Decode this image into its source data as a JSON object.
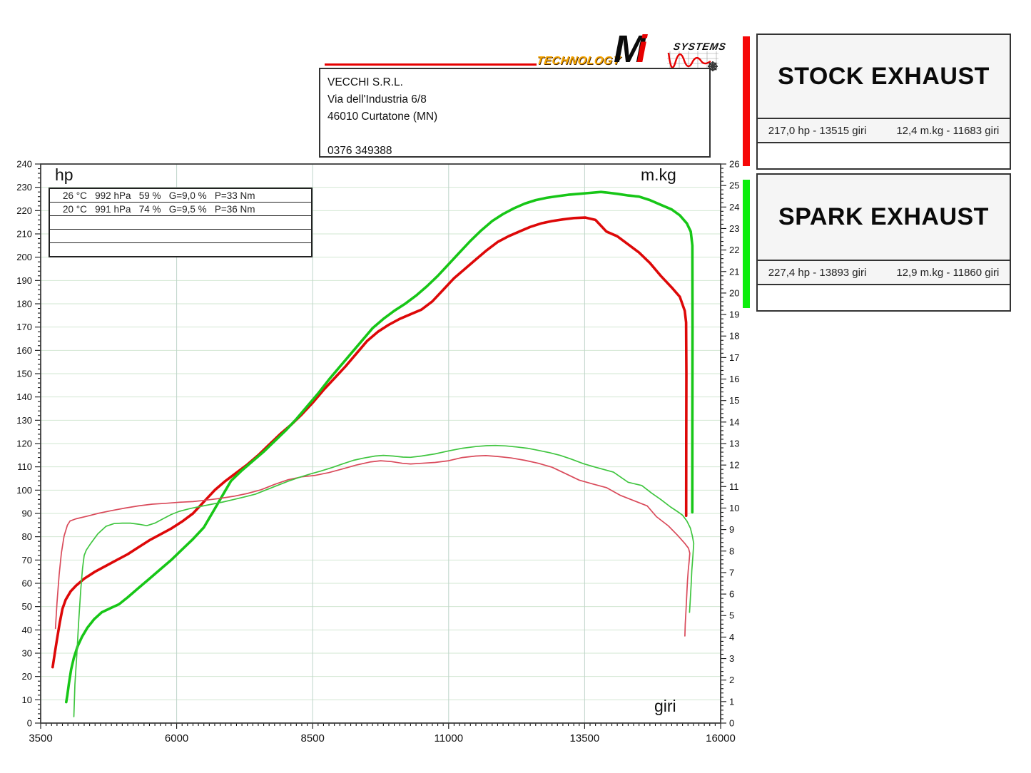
{
  "header": {
    "company": {
      "lines": [
        "VECCHI S.R.L.",
        "Via dell'Industria 6/8",
        "46010 Curtatone (MN)",
        "",
        "0376 349388"
      ]
    },
    "logo": {
      "technology": "TECHNOLOGY",
      "brand_m": "M",
      "brand_i": "i",
      "systems": "SYSTEMS"
    }
  },
  "legend": [
    {
      "title": "STOCK EXHAUST",
      "color": "#f60707",
      "hp_stat": "217,0 hp - 13515 giri",
      "torque_stat": "12,4 m.kg - 11683 giri"
    },
    {
      "title": "SPARK EXHAUST",
      "color": "#0cee0c",
      "hp_stat": "227,4 hp - 13893 giri",
      "torque_stat": "12,9 m.kg - 11860 giri"
    }
  ],
  "chart": {
    "y_left_unit": "hp",
    "y_right_unit": "m.kg",
    "x_unit": "giri",
    "conditions_rows": [
      [
        "26 °C",
        "992 hPa",
        "59 %",
        "G=9,0 %",
        "P=33 Nm"
      ],
      [
        "20 °C",
        "991 hPa",
        "74 %",
        "G=9,5 %",
        "P=36 Nm"
      ],
      [],
      [],
      []
    ]
  },
  "chart_data": {
    "type": "line",
    "xlabel": "giri",
    "ylabel_left": "hp",
    "ylabel_right": "m.kg",
    "x_range": [
      3500,
      16000
    ],
    "x_ticks": [
      3500,
      6000,
      8500,
      11000,
      13500,
      16000
    ],
    "x_minor_step": 100,
    "y_left_range": [
      0,
      240
    ],
    "y_left_tick_step": 10,
    "y_left_minor_step": 2,
    "y_right_range": [
      0,
      26
    ],
    "y_right_tick_step": 1,
    "y_right_minor_step": 0.2,
    "grid": true,
    "legend_position": "right-panels",
    "peaks": {
      "stock_hp": [
        13515,
        217.0
      ],
      "stock_torque": [
        11683,
        12.4
      ],
      "spark_hp": [
        13893,
        227.4
      ],
      "spark_torque": [
        11860,
        12.9
      ]
    },
    "series": [
      {
        "name": "stock-exhaust-hp",
        "axis": "left",
        "color": "#dd0808",
        "width": 3.6,
        "points": [
          [
            3720,
            24
          ],
          [
            3760,
            30
          ],
          [
            3800,
            36
          ],
          [
            3850,
            43
          ],
          [
            3900,
            49
          ],
          [
            3960,
            53
          ],
          [
            4050,
            56.5
          ],
          [
            4150,
            59
          ],
          [
            4300,
            62
          ],
          [
            4500,
            65
          ],
          [
            4700,
            67.5
          ],
          [
            4900,
            70
          ],
          [
            5100,
            72.5
          ],
          [
            5300,
            75.5
          ],
          [
            5500,
            78.5
          ],
          [
            5700,
            81
          ],
          [
            5900,
            83.5
          ],
          [
            6100,
            86.5
          ],
          [
            6300,
            90
          ],
          [
            6500,
            95
          ],
          [
            6700,
            100
          ],
          [
            6900,
            104
          ],
          [
            7100,
            107.5
          ],
          [
            7300,
            111
          ],
          [
            7500,
            115
          ],
          [
            7700,
            119.5
          ],
          [
            7900,
            124
          ],
          [
            8100,
            128
          ],
          [
            8300,
            132.5
          ],
          [
            8500,
            137.5
          ],
          [
            8700,
            143
          ],
          [
            8900,
            148
          ],
          [
            9100,
            153
          ],
          [
            9300,
            158.5
          ],
          [
            9500,
            164
          ],
          [
            9700,
            168
          ],
          [
            9900,
            171
          ],
          [
            10100,
            173.5
          ],
          [
            10300,
            175.5
          ],
          [
            10500,
            177.5
          ],
          [
            10700,
            181
          ],
          [
            10900,
            186
          ],
          [
            11100,
            191
          ],
          [
            11300,
            195
          ],
          [
            11500,
            199
          ],
          [
            11700,
            203
          ],
          [
            11900,
            206.5
          ],
          [
            12100,
            209
          ],
          [
            12300,
            211
          ],
          [
            12500,
            213
          ],
          [
            12700,
            214.5
          ],
          [
            12900,
            215.5
          ],
          [
            13100,
            216.2
          ],
          [
            13300,
            216.8
          ],
          [
            13515,
            217
          ],
          [
            13700,
            216
          ],
          [
            13900,
            211
          ],
          [
            14100,
            209
          ],
          [
            14300,
            205.5
          ],
          [
            14500,
            202
          ],
          [
            14700,
            197.5
          ],
          [
            14900,
            192
          ],
          [
            15100,
            187
          ],
          [
            15250,
            183
          ],
          [
            15340,
            177
          ],
          [
            15365,
            172
          ],
          [
            15370,
            150
          ],
          [
            15368,
            120
          ],
          [
            15366,
            89
          ]
        ]
      },
      {
        "name": "spark-exhaust-hp",
        "axis": "left",
        "color": "#17c617",
        "width": 3.6,
        "points": [
          [
            3970,
            9
          ],
          [
            3990,
            12
          ],
          [
            4020,
            17
          ],
          [
            4060,
            23
          ],
          [
            4110,
            28
          ],
          [
            4180,
            33
          ],
          [
            4260,
            37
          ],
          [
            4360,
            41
          ],
          [
            4480,
            44.5
          ],
          [
            4620,
            47.5
          ],
          [
            4800,
            49.5
          ],
          [
            4940,
            51
          ],
          [
            5100,
            54
          ],
          [
            5300,
            58
          ],
          [
            5500,
            62
          ],
          [
            5700,
            66
          ],
          [
            5900,
            70
          ],
          [
            6100,
            74.5
          ],
          [
            6300,
            79
          ],
          [
            6500,
            84
          ],
          [
            6700,
            92
          ],
          [
            6900,
            100
          ],
          [
            7000,
            104
          ],
          [
            7200,
            108.5
          ],
          [
            7400,
            112.5
          ],
          [
            7600,
            116.5
          ],
          [
            7800,
            121
          ],
          [
            8000,
            125.5
          ],
          [
            8200,
            130.5
          ],
          [
            8400,
            136
          ],
          [
            8600,
            141.5
          ],
          [
            8800,
            147.5
          ],
          [
            9000,
            153
          ],
          [
            9200,
            158.5
          ],
          [
            9400,
            164
          ],
          [
            9600,
            169.5
          ],
          [
            9800,
            173.5
          ],
          [
            10000,
            177
          ],
          [
            10200,
            180
          ],
          [
            10400,
            183.5
          ],
          [
            10600,
            187.5
          ],
          [
            10800,
            192
          ],
          [
            11000,
            197
          ],
          [
            11200,
            202
          ],
          [
            11400,
            207
          ],
          [
            11600,
            211.5
          ],
          [
            11800,
            215.5
          ],
          [
            12000,
            218.5
          ],
          [
            12200,
            221
          ],
          [
            12400,
            223
          ],
          [
            12600,
            224.5
          ],
          [
            12800,
            225.5
          ],
          [
            13000,
            226.2
          ],
          [
            13200,
            226.8
          ],
          [
            13400,
            227.2
          ],
          [
            13600,
            227.6
          ],
          [
            13800,
            228
          ],
          [
            13893,
            227.8
          ],
          [
            14100,
            227.2
          ],
          [
            14300,
            226.5
          ],
          [
            14500,
            226
          ],
          [
            14700,
            224.5
          ],
          [
            14900,
            222.5
          ],
          [
            15100,
            220.5
          ],
          [
            15250,
            218
          ],
          [
            15380,
            214.5
          ],
          [
            15450,
            211
          ],
          [
            15480,
            205
          ],
          [
            15483,
            170
          ],
          [
            15481,
            130
          ],
          [
            15479,
            90.5
          ]
        ]
      },
      {
        "name": "stock-exhaust-torque",
        "axis": "right",
        "color": "#d94a5a",
        "width": 1.7,
        "points": [
          [
            3771,
            4.4
          ],
          [
            3800,
            5.6
          ],
          [
            3840,
            6.9
          ],
          [
            3880,
            7.9
          ],
          [
            3930,
            8.7
          ],
          [
            3990,
            9.2
          ],
          [
            4040,
            9.4
          ],
          [
            4150,
            9.5
          ],
          [
            4350,
            9.62
          ],
          [
            4550,
            9.75
          ],
          [
            4800,
            9.88
          ],
          [
            5050,
            10.0
          ],
          [
            5300,
            10.1
          ],
          [
            5550,
            10.18
          ],
          [
            5800,
            10.22
          ],
          [
            6050,
            10.27
          ],
          [
            6300,
            10.3
          ],
          [
            6550,
            10.37
          ],
          [
            6800,
            10.45
          ],
          [
            7050,
            10.55
          ],
          [
            7300,
            10.68
          ],
          [
            7550,
            10.85
          ],
          [
            7800,
            11.1
          ],
          [
            8050,
            11.32
          ],
          [
            8300,
            11.45
          ],
          [
            8550,
            11.52
          ],
          [
            8800,
            11.65
          ],
          [
            9050,
            11.82
          ],
          [
            9300,
            12.0
          ],
          [
            9550,
            12.14
          ],
          [
            9750,
            12.2
          ],
          [
            9950,
            12.16
          ],
          [
            10150,
            12.08
          ],
          [
            10300,
            12.05
          ],
          [
            10500,
            12.08
          ],
          [
            10750,
            12.12
          ],
          [
            11000,
            12.2
          ],
          [
            11250,
            12.35
          ],
          [
            11500,
            12.42
          ],
          [
            11683,
            12.44
          ],
          [
            11900,
            12.4
          ],
          [
            12150,
            12.33
          ],
          [
            12400,
            12.22
          ],
          [
            12650,
            12.08
          ],
          [
            12900,
            11.9
          ],
          [
            13150,
            11.6
          ],
          [
            13400,
            11.3
          ],
          [
            13650,
            11.12
          ],
          [
            13900,
            10.95
          ],
          [
            14150,
            10.6
          ],
          [
            14400,
            10.35
          ],
          [
            14650,
            10.1
          ],
          [
            14820,
            9.6
          ],
          [
            15040,
            9.17
          ],
          [
            15210,
            8.73
          ],
          [
            15343,
            8.35
          ],
          [
            15410,
            8.13
          ],
          [
            15434,
            7.9
          ],
          [
            15420,
            7.5
          ],
          [
            15405,
            7.1
          ],
          [
            15392,
            6.65
          ],
          [
            15382,
            6.2
          ],
          [
            15374,
            5.8
          ],
          [
            15362,
            5.2
          ],
          [
            15350,
            4.6
          ],
          [
            15343,
            4.05
          ]
        ]
      },
      {
        "name": "spark-exhaust-torque",
        "axis": "right",
        "color": "#3fc53f",
        "width": 1.7,
        "points": [
          [
            4110,
            0.3
          ],
          [
            4130,
            1.8
          ],
          [
            4165,
            3.2
          ],
          [
            4200,
            4.8
          ],
          [
            4240,
            6.3
          ],
          [
            4270,
            7.2
          ],
          [
            4300,
            7.8
          ],
          [
            4340,
            8.05
          ],
          [
            4420,
            8.35
          ],
          [
            4550,
            8.8
          ],
          [
            4700,
            9.15
          ],
          [
            4850,
            9.28
          ],
          [
            5000,
            9.3
          ],
          [
            5150,
            9.3
          ],
          [
            5300,
            9.25
          ],
          [
            5450,
            9.18
          ],
          [
            5600,
            9.3
          ],
          [
            5750,
            9.5
          ],
          [
            5900,
            9.7
          ],
          [
            6050,
            9.85
          ],
          [
            6250,
            9.98
          ],
          [
            6450,
            10.08
          ],
          [
            6650,
            10.18
          ],
          [
            6850,
            10.28
          ],
          [
            7050,
            10.4
          ],
          [
            7250,
            10.52
          ],
          [
            7450,
            10.65
          ],
          [
            7650,
            10.85
          ],
          [
            7850,
            11.05
          ],
          [
            8050,
            11.25
          ],
          [
            8250,
            11.42
          ],
          [
            8450,
            11.58
          ],
          [
            8650,
            11.72
          ],
          [
            8850,
            11.88
          ],
          [
            9050,
            12.05
          ],
          [
            9250,
            12.22
          ],
          [
            9450,
            12.33
          ],
          [
            9650,
            12.42
          ],
          [
            9800,
            12.45
          ],
          [
            9980,
            12.42
          ],
          [
            10160,
            12.37
          ],
          [
            10300,
            12.36
          ],
          [
            10500,
            12.42
          ],
          [
            10750,
            12.52
          ],
          [
            11000,
            12.66
          ],
          [
            11250,
            12.78
          ],
          [
            11500,
            12.86
          ],
          [
            11700,
            12.9
          ],
          [
            11860,
            12.91
          ],
          [
            12050,
            12.89
          ],
          [
            12250,
            12.84
          ],
          [
            12450,
            12.78
          ],
          [
            12650,
            12.68
          ],
          [
            12850,
            12.58
          ],
          [
            13050,
            12.45
          ],
          [
            13250,
            12.28
          ],
          [
            13480,
            12.06
          ],
          [
            13700,
            11.9
          ],
          [
            14030,
            11.67
          ],
          [
            14300,
            11.2
          ],
          [
            14550,
            11.05
          ],
          [
            14730,
            10.7
          ],
          [
            14900,
            10.4
          ],
          [
            15080,
            10.05
          ],
          [
            15200,
            9.85
          ],
          [
            15300,
            9.67
          ],
          [
            15380,
            9.4
          ],
          [
            15445,
            9.06
          ],
          [
            15480,
            8.7
          ],
          [
            15506,
            8.35
          ],
          [
            15490,
            7.75
          ],
          [
            15470,
            7.1
          ],
          [
            15458,
            6.45
          ],
          [
            15442,
            5.75
          ],
          [
            15428,
            5.15
          ]
        ]
      }
    ]
  }
}
